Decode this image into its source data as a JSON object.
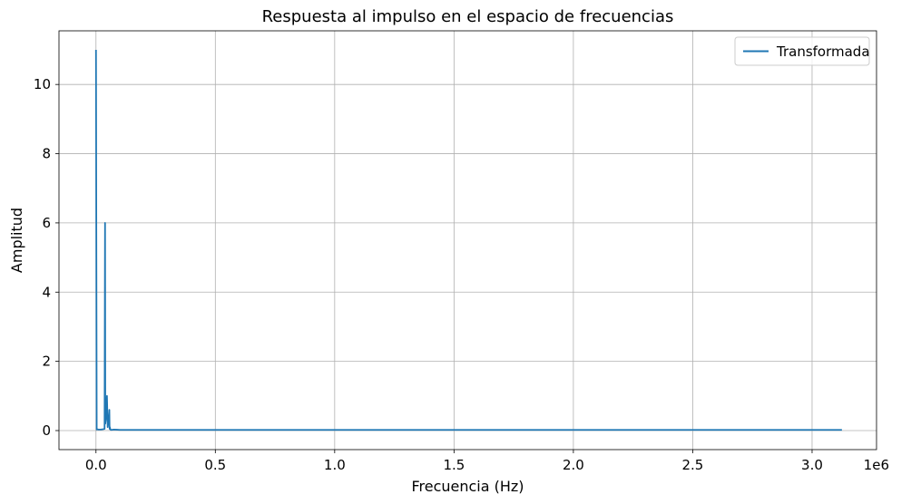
{
  "chart_data": {
    "type": "line",
    "title": "Respuesta al impulso en el espacio de frecuencias",
    "xlabel": "Frecuencia (Hz)",
    "ylabel": "Amplitud",
    "x_offset_label": "1e6",
    "xlim": [
      -0.155,
      3.27
    ],
    "ylim": [
      -0.55,
      11.55
    ],
    "x_ticks": [
      0.0,
      0.5,
      1.0,
      1.5,
      2.0,
      2.5,
      3.0
    ],
    "x_tick_labels": [
      "0.0",
      "0.5",
      "1.0",
      "1.5",
      "2.0",
      "2.5",
      "3.0"
    ],
    "y_ticks": [
      0,
      2,
      4,
      6,
      8,
      10
    ],
    "y_tick_labels": [
      "0",
      "2",
      "4",
      "6",
      "8",
      "10"
    ],
    "grid": true,
    "legend_position": "top-right",
    "colors": {
      "series": "#1f77b4",
      "grid": "#b0b0b0",
      "axis": "#000000"
    },
    "series": [
      {
        "name": "Transformada",
        "x": [
          0.0,
          0.003,
          0.004,
          0.01,
          0.02,
          0.03,
          0.036,
          0.038,
          0.039,
          0.041,
          0.043,
          0.046,
          0.049,
          0.052,
          0.054,
          0.056,
          0.057,
          0.058,
          0.06,
          0.065,
          0.075,
          0.1,
          0.2,
          0.3,
          0.5,
          0.7,
          1.0,
          1.5,
          2.0,
          2.5,
          3.0,
          3.125
        ],
        "y": [
          11.0,
          0.03,
          0.04,
          0.03,
          0.03,
          0.04,
          0.05,
          6.0,
          0.2,
          0.3,
          0.5,
          1.0,
          0.1,
          0.3,
          0.35,
          0.6,
          0.05,
          0.1,
          0.03,
          0.02,
          0.03,
          0.02,
          0.02,
          0.02,
          0.02,
          0.02,
          0.02,
          0.02,
          0.02,
          0.02,
          0.02,
          0.02
        ]
      }
    ]
  }
}
